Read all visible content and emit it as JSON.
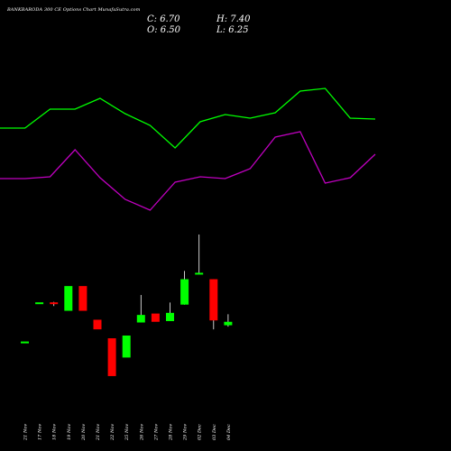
{
  "chart_data": {
    "type": "candlestick",
    "title": "BANKBARODA 300 CE Options Chart MunafaSutra.com",
    "summary": {
      "C": "C: 6.70",
      "O": "O: 6.50",
      "H": "H: 7.40",
      "L": "L: 6.25"
    },
    "dates": [
      "21 Nov",
      "17 Nov",
      "18 Nov",
      "19 Nov",
      "20 Nov",
      "21 Nov",
      "22 Nov",
      "25 Nov",
      "26 Nov",
      "27 Nov",
      "28 Nov",
      "29 Nov",
      "02 Dec",
      "03 Dec",
      "04 Dec"
    ],
    "candles": [
      {
        "open": 5.3,
        "close": 5.3,
        "high": 5.3,
        "low": 5.3
      },
      {
        "open": 11.0,
        "close": 11.0,
        "high": 11.0,
        "low": 11.0
      },
      {
        "open": 11.0,
        "close": 10.8,
        "high": 11.2,
        "low": 10.6
      },
      {
        "open": 9.9,
        "close": 13.5,
        "high": 13.5,
        "low": 9.9
      },
      {
        "open": 13.5,
        "close": 9.9,
        "high": 13.5,
        "low": 9.9
      },
      {
        "open": 8.6,
        "close": 7.2,
        "high": 8.6,
        "low": 7.2
      },
      {
        "open": 5.9,
        "close": 0.4,
        "high": 5.9,
        "low": 0.4
      },
      {
        "open": 3.1,
        "close": 6.3,
        "high": 6.3,
        "low": 3.1
      },
      {
        "open": 8.2,
        "close": 9.3,
        "high": 12.2,
        "low": 8.2
      },
      {
        "open": 9.5,
        "close": 8.3,
        "high": 9.5,
        "low": 8.3
      },
      {
        "open": 8.4,
        "close": 9.6,
        "high": 11.1,
        "low": 8.4
      },
      {
        "open": 10.8,
        "close": 14.5,
        "high": 15.7,
        "low": 10.8
      },
      {
        "open": 15.2,
        "close": 15.3,
        "high": 21.0,
        "low": 15.2
      },
      {
        "open": 14.5,
        "close": 8.5,
        "high": 14.5,
        "low": 7.2
      },
      {
        "open": 7.8,
        "close": 8.3,
        "high": 9.4,
        "low": 7.6
      }
    ],
    "indicator_upper": {
      "color": "#00ff00",
      "values": [
        142,
        142,
        121,
        121,
        109,
        126,
        139,
        164,
        135,
        127,
        131,
        125,
        101,
        98,
        131,
        132
      ]
    },
    "indicator_lower": {
      "color": "#c000c0",
      "values": [
        198,
        198,
        196,
        166,
        197,
        221,
        233,
        202,
        196,
        198,
        187,
        152,
        146,
        203,
        197,
        171
      ]
    },
    "bull_color": "#00ff00",
    "bear_color": "#ff0000"
  }
}
